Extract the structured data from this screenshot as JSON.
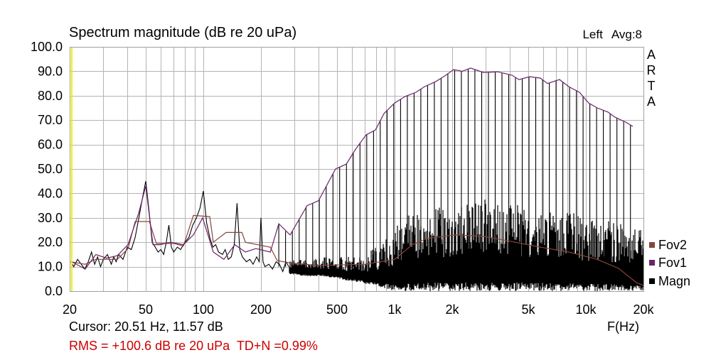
{
  "header": {
    "channel": "Left",
    "avg": "Avg:8",
    "brand": "ARTA"
  },
  "footer": {
    "cursor_text": "Cursor: 20.51 Hz, 11.57 dB",
    "rms_text": "RMS = +100.6 dB re 20 uPa  TD+N =0.99%",
    "rms_color": "#cc0000"
  },
  "chart_data": {
    "type": "line",
    "title": "Spectrum magnitude (dB re 20 uPa)",
    "xlabel": "F(Hz)",
    "x_scale": "log",
    "xlim": [
      20,
      20000
    ],
    "ylim": [
      0,
      100
    ],
    "grid": true,
    "legend_position": "right",
    "cursor": {
      "freq": 20.51,
      "db": 11.57,
      "color": "#f0f000"
    },
    "x_ticks": [
      {
        "value": 20,
        "label": "20"
      },
      {
        "value": 50,
        "label": "50"
      },
      {
        "value": 100,
        "label": "100"
      },
      {
        "value": 200,
        "label": "200"
      },
      {
        "value": 500,
        "label": "500"
      },
      {
        "value": 1000,
        "label": "1k"
      },
      {
        "value": 2000,
        "label": "2k"
      },
      {
        "value": 5000,
        "label": "5k"
      },
      {
        "value": 10000,
        "label": "10k"
      },
      {
        "value": 20000,
        "label": "20k"
      }
    ],
    "y_ticks": [
      {
        "value": 100,
        "label": "100.0"
      },
      {
        "value": 90,
        "label": "90.0"
      },
      {
        "value": 80,
        "label": "80.0"
      },
      {
        "value": 70,
        "label": "70.0"
      },
      {
        "value": 60,
        "label": "60.0"
      },
      {
        "value": 50,
        "label": "50.0"
      },
      {
        "value": 40,
        "label": "40.0"
      },
      {
        "value": 30,
        "label": "30.0"
      },
      {
        "value": 20,
        "label": "20.0"
      },
      {
        "value": 10,
        "label": "10.0"
      },
      {
        "value": 0,
        "label": "0.0"
      }
    ],
    "series": [
      {
        "name": "Fov2",
        "color": "#87453a",
        "x": [
          20.3,
          24.1,
          27.4,
          35.5,
          40.4,
          44,
          52.2,
          56.8,
          70.4,
          78.7,
          88.7,
          108,
          112.7,
          131.5,
          159,
          166,
          224,
          243,
          284,
          400,
          700,
          1000,
          1238,
          1470,
          2070,
          2916,
          4104,
          5781,
          8146,
          11468,
          14820,
          18360,
          20000
        ],
        "y": [
          12.0,
          11.0,
          13.0,
          13.0,
          17.4,
          28.5,
          28.5,
          19.5,
          19.5,
          18.5,
          31.0,
          30.5,
          20.0,
          24.0,
          24.0,
          20.0,
          18.0,
          12.5,
          11.5,
          10.5,
          11.0,
          13.0,
          19.0,
          21.5,
          23.0,
          22.4,
          20.3,
          18.0,
          16.0,
          13.0,
          9.3,
          3.5,
          2.3
        ]
      },
      {
        "name": "Fov1",
        "color": "#6a2468",
        "x": [
          20.3,
          24.1,
          27.4,
          31.2,
          35.5,
          40.4,
          45.9,
          50.0,
          54.5,
          59.3,
          67.4,
          78.7,
          88.7,
          99.1,
          112.7,
          128,
          146,
          166,
          188,
          224,
          248,
          284,
          349,
          400,
          491,
          559,
          624,
          710,
          794,
          880,
          1000,
          1137,
          1292,
          1432,
          1643,
          1820,
          2034,
          2254,
          2498,
          2916,
          3459,
          4104,
          4472,
          5082,
          5781,
          6298,
          7283,
          8146,
          9258,
          10348,
          11468,
          13034,
          14200,
          16150,
          17590
        ],
        "y": [
          12.2,
          9.0,
          15.0,
          13.5,
          14.5,
          19.0,
          32.0,
          43.0,
          19.0,
          19.0,
          20.0,
          19.0,
          23.0,
          30.0,
          16.0,
          13.0,
          19.0,
          16.0,
          17.4,
          16.0,
          27.6,
          23.0,
          35.0,
          37.0,
          50.0,
          52.0,
          58.0,
          64.0,
          66.0,
          72.7,
          77.0,
          79.7,
          81.4,
          83.7,
          85.8,
          88.0,
          90.7,
          90.0,
          91.3,
          89.5,
          89.8,
          88.4,
          86.6,
          87.8,
          87.2,
          85.0,
          86.6,
          83.7,
          81.4,
          77.0,
          75.0,
          73.3,
          71.2,
          69.2,
          67.4
        ]
      },
      {
        "name": "Magn",
        "color": "#000000",
        "x": [
          20.3,
          21,
          22,
          23,
          24,
          25,
          26,
          27,
          28,
          29,
          30,
          31.5,
          33,
          34,
          35,
          36,
          38,
          40,
          42,
          44,
          46,
          48,
          50,
          52,
          54,
          56,
          58,
          60,
          62,
          64,
          66,
          68,
          70,
          73,
          76,
          80,
          84,
          88,
          92,
          96,
          100,
          104,
          108,
          112,
          116,
          120,
          126,
          130,
          135,
          140,
          145,
          150,
          155,
          160,
          168,
          175,
          182,
          190,
          196,
          200,
          205,
          210,
          220,
          230,
          240,
          250,
          260,
          270,
          280
        ],
        "y": [
          12,
          10,
          13,
          11,
          9,
          12,
          16,
          11,
          14,
          10,
          13,
          15,
          11,
          14,
          12,
          15,
          13,
          18,
          17,
          22,
          30,
          38,
          45,
          33,
          20,
          18,
          16,
          17,
          15,
          20,
          27,
          18,
          16,
          18,
          17,
          20,
          22,
          27,
          30,
          34,
          41,
          28,
          22,
          18,
          19,
          16,
          15,
          17,
          13,
          14,
          19,
          36,
          17,
          14,
          12,
          13,
          11,
          14,
          12,
          30,
          12,
          10,
          11,
          9,
          12,
          11,
          8,
          12,
          10
        ],
        "noise_band": {
          "x": [
            280,
            350,
            420,
            500,
            600,
            700,
            800,
            900,
            1000,
            1200,
            1500,
            2000,
            2500,
            3000,
            3500,
            4000,
            5000,
            6000,
            7000,
            8000,
            10000,
            12000,
            15000,
            18000,
            20000
          ],
          "min": [
            7,
            6,
            6,
            5,
            4,
            3,
            2,
            1,
            0,
            0,
            0,
            0,
            0,
            0,
            0,
            0,
            0,
            0,
            0,
            0,
            0,
            0,
            0,
            0,
            0
          ],
          "max": [
            13,
            13,
            14,
            14,
            14,
            15,
            18,
            22,
            26,
            32,
            34,
            35,
            36,
            39,
            38,
            36,
            35,
            34,
            33,
            33,
            31,
            29,
            28,
            27,
            25
          ]
        },
        "peaks": {
          "x": [
            248,
            269,
            292,
            317,
            344,
            373,
            404,
            439,
            476,
            516,
            560,
            608,
            659,
            715,
            776,
            841,
            913,
            990,
            1074,
            1165,
            1264,
            1371,
            1487,
            1613,
            1750,
            1899,
            2060,
            2234,
            2424,
            2629,
            2852,
            3094,
            3357,
            3641,
            3950,
            4285,
            4648,
            5043,
            5470,
            5934,
            6437,
            6983,
            7575,
            8218,
            8915,
            9671,
            10491,
            11380,
            12345,
            13392,
            14528,
            15760,
            17097
          ],
          "y": [
            27.6,
            24.5,
            24.6,
            29.4,
            34.5,
            36.0,
            37.6,
            42.9,
            48.0,
            50.8,
            52.0,
            56.6,
            60.5,
            64.1,
            65.6,
            69.7,
            73.9,
            76.7,
            78.5,
            80.0,
            81.1,
            82.7,
            84.3,
            85.5,
            87.2,
            89.0,
            90.6,
            90.1,
            90.9,
            90.7,
            89.8,
            89.6,
            89.7,
            89.4,
            88.7,
            87.5,
            87.0,
            87.7,
            87.5,
            86.5,
            85.2,
            86.2,
            85.6,
            83.5,
            82.1,
            79.7,
            76.7,
            75.1,
            74.0,
            72.6,
            70.8,
            69.6,
            68.0
          ]
        }
      }
    ]
  }
}
